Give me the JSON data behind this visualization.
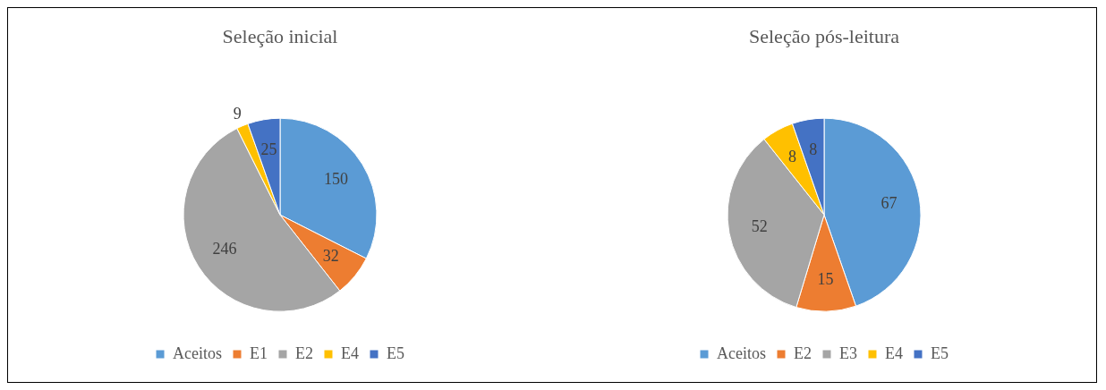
{
  "chart_data": [
    {
      "type": "pie",
      "title": "Seleção inicial",
      "categories": [
        "Aceitos",
        "E1",
        "E2",
        "E4",
        "E5"
      ],
      "values": [
        150,
        32,
        246,
        9,
        25
      ],
      "colors": [
        "#5b9bd5",
        "#ed7d31",
        "#a5a5a5",
        "#ffc000",
        "#4472c4"
      ],
      "data_labels": true,
      "legend": "bottom"
    },
    {
      "type": "pie",
      "title": "Seleção pós-leitura",
      "categories": [
        "Aceitos",
        "E2",
        "E3",
        "E4",
        "E5"
      ],
      "values": [
        67,
        15,
        52,
        8,
        8
      ],
      "colors": [
        "#5b9bd5",
        "#ed7d31",
        "#a5a5a5",
        "#ffc000",
        "#4472c4"
      ],
      "data_labels": true,
      "legend": "bottom"
    }
  ]
}
